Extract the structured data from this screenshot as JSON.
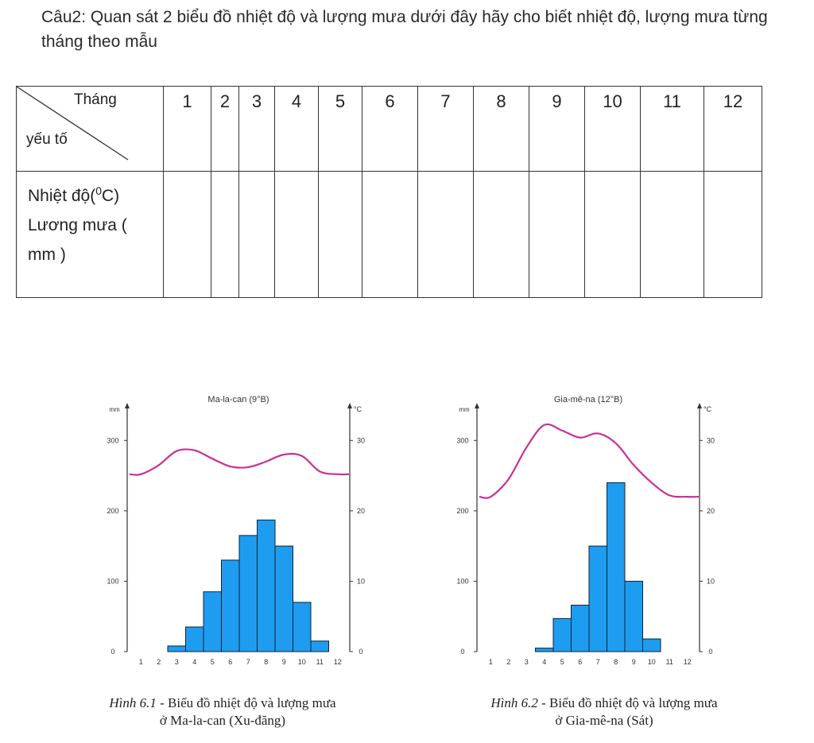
{
  "question": "Câu2: Quan sát 2  biểu đồ nhiệt độ và lượng mưa dưới đây hãy cho biết nhiệt độ, lượng mưa từng tháng theo mẫu",
  "table": {
    "corner_top": "Tháng",
    "corner_bottom": "yếu tố",
    "months": [
      "1",
      "2",
      "3",
      "4",
      "5",
      "6",
      "7",
      "8",
      "9",
      "10",
      "11",
      "12"
    ],
    "row_temp_label": "Nhiệt độ(",
    "row_temp_unit_sup": "0",
    "row_temp_unit_end": "C)",
    "row_rain_label": "Lương mưa ( mm )"
  },
  "chart_data": [
    {
      "type": "bar+line",
      "title": "Ma-la-can (9°B)",
      "y_left_label": "mm",
      "y_right_label": "°C",
      "categories": [
        "1",
        "2",
        "3",
        "4",
        "5",
        "6",
        "7",
        "8",
        "9",
        "10",
        "11",
        "12"
      ],
      "rainfall_mm": [
        0,
        0,
        8,
        35,
        85,
        130,
        165,
        187,
        150,
        70,
        15,
        0
      ],
      "temperature_c": [
        25.2,
        26.5,
        28.5,
        28.6,
        27.4,
        26.3,
        26.2,
        27.0,
        28.0,
        27.8,
        25.6,
        25.2
      ],
      "y_left_ticks": [
        0,
        100,
        200,
        300
      ],
      "y_right_ticks": [
        0,
        10,
        20,
        30
      ],
      "ylim_left": [
        0,
        350
      ],
      "ylim_right": [
        0,
        35
      ],
      "bar_color": "#1e9cf0",
      "line_color": "#c8309a",
      "caption_fig": "Hình 6.1",
      "caption_text": " - Biểu đồ nhiệt độ và lượng mưa",
      "caption_line2": "ở Ma-la-can (Xu-đăng)"
    },
    {
      "type": "bar+line",
      "title": "Gia-mê-na (12°B)",
      "y_left_label": "mm",
      "y_right_label": "°C",
      "categories": [
        "1",
        "2",
        "3",
        "4",
        "5",
        "6",
        "7",
        "8",
        "9",
        "10",
        "11",
        "12"
      ],
      "rainfall_mm": [
        0,
        0,
        0,
        5,
        47,
        66,
        150,
        240,
        100,
        18,
        0,
        0
      ],
      "temperature_c": [
        22.0,
        24.5,
        29.0,
        32.2,
        31.4,
        30.4,
        31.0,
        29.6,
        26.5,
        24.0,
        22.2,
        22.0
      ],
      "y_left_ticks": [
        0,
        100,
        200,
        300
      ],
      "y_right_ticks": [
        0,
        10,
        20,
        30
      ],
      "ylim_left": [
        0,
        350
      ],
      "ylim_right": [
        0,
        35
      ],
      "bar_color": "#1e9cf0",
      "line_color": "#c8309a",
      "caption_fig": "Hình 6.2",
      "caption_text": " - Biểu đồ nhiệt độ và lượng mưa",
      "caption_line2": "ở Gia-mê-na (Sát)"
    }
  ]
}
